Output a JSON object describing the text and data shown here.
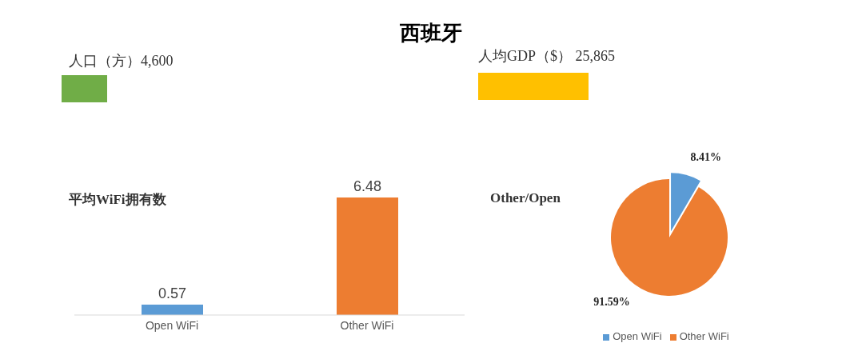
{
  "chart_data": [
    {
      "type": "other",
      "title": "西班牙",
      "annotations": [
        "人口（方）4,600",
        "人均GDP（$） 25,865"
      ],
      "colors": [
        "#70ad47",
        "#ffc000"
      ]
    },
    {
      "type": "bar",
      "title": "平均WiFi拥有数",
      "categories": [
        "Open WiFi",
        "Other WiFi"
      ],
      "values": [
        0.57,
        6.48
      ],
      "colors": [
        "#5b9bd5",
        "#ed7d31"
      ],
      "data_labels": true
    },
    {
      "type": "pie",
      "title": "Other/Open",
      "categories": [
        "Open WiFi",
        "Other WiFi"
      ],
      "values": [
        8.41,
        91.59
      ],
      "colors": [
        "#5b9bd5",
        "#ed7d31"
      ],
      "value_labels": [
        "8.41%",
        "91.59%"
      ],
      "legend": "bottom"
    }
  ]
}
